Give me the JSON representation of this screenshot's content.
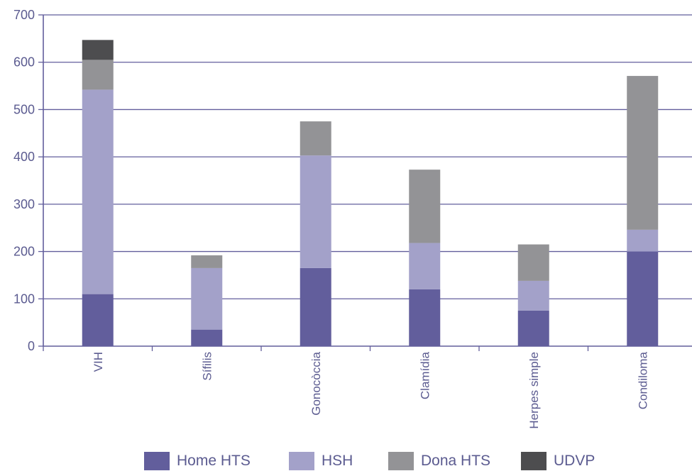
{
  "chart_data": {
    "type": "bar",
    "stacked": true,
    "categories": [
      "VIH",
      "Sífilis",
      "Gonocòccia",
      "Clamídia",
      "Herpes simple",
      "Condiloma"
    ],
    "series": [
      {
        "name": "Home HTS",
        "color": "#625e9c",
        "values": [
          110,
          35,
          165,
          120,
          75,
          200
        ]
      },
      {
        "name": "HSH",
        "color": "#a3a1c9",
        "values": [
          432,
          130,
          238,
          98,
          63,
          46
        ]
      },
      {
        "name": "Dona HTS",
        "color": "#939396",
        "values": [
          63,
          27,
          72,
          155,
          77,
          325
        ]
      },
      {
        "name": "UDVP",
        "color": "#4d4d4f",
        "values": [
          42,
          0,
          0,
          0,
          0,
          0
        ]
      }
    ],
    "ylim": [
      0,
      700
    ],
    "yticks": [
      "0",
      "100",
      "200",
      "300",
      "400",
      "500",
      "600",
      "700"
    ],
    "grid": true,
    "legend_position": "bottom",
    "axis_color": "#625e9c"
  }
}
